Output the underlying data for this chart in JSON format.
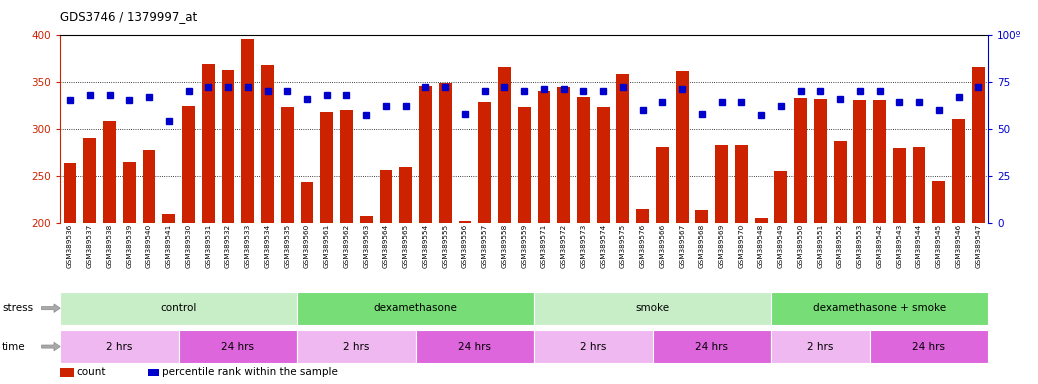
{
  "title": "GDS3746 / 1379997_at",
  "bar_values": [
    263,
    290,
    308,
    265,
    277,
    209,
    324,
    369,
    362,
    395,
    368,
    323,
    243,
    318,
    320,
    207,
    256,
    259,
    345,
    348,
    202,
    328,
    366,
    323,
    340,
    344,
    334,
    323,
    358,
    215,
    280,
    361,
    213,
    283,
    283,
    205,
    255,
    333,
    332,
    287,
    330,
    330,
    279,
    280,
    244,
    310,
    365
  ],
  "pct_values": [
    65,
    68,
    68,
    65,
    67,
    54,
    70,
    72,
    72,
    72,
    70,
    70,
    66,
    68,
    68,
    57,
    62,
    62,
    72,
    72,
    58,
    70,
    72,
    70,
    71,
    71,
    70,
    70,
    72,
    60,
    64,
    71,
    58,
    64,
    64,
    57,
    62,
    70,
    70,
    66,
    70,
    70,
    64,
    64,
    60,
    67,
    72
  ],
  "sample_labels": [
    "GSM389536",
    "GSM389537",
    "GSM389538",
    "GSM389539",
    "GSM389540",
    "GSM389541",
    "GSM389530",
    "GSM389531",
    "GSM389532",
    "GSM389533",
    "GSM389534",
    "GSM389535",
    "GSM389560",
    "GSM389561",
    "GSM389562",
    "GSM389563",
    "GSM389564",
    "GSM389565",
    "GSM389554",
    "GSM389555",
    "GSM389556",
    "GSM389557",
    "GSM389558",
    "GSM389559",
    "GSM389571",
    "GSM389572",
    "GSM389573",
    "GSM389574",
    "GSM389575",
    "GSM389576",
    "GSM389566",
    "GSM389567",
    "GSM389568",
    "GSM389569",
    "GSM389570",
    "GSM389548",
    "GSM389549",
    "GSM389550",
    "GSM389551",
    "GSM389552",
    "GSM389553",
    "GSM389542",
    "GSM389543",
    "GSM389544",
    "GSM389545",
    "GSM389546",
    "GSM389547"
  ],
  "bar_color": "#cc2200",
  "pct_color": "#0000cc",
  "ymin": 200,
  "ymax": 400,
  "yticks": [
    200,
    250,
    300,
    350,
    400
  ],
  "y2ticks": [
    0,
    25,
    50,
    75,
    100
  ],
  "stress_groups": [
    {
      "label": "control",
      "start": 0,
      "end": 11,
      "color": "#c8eec8"
    },
    {
      "label": "dexamethasone",
      "start": 12,
      "end": 23,
      "color": "#77dd77"
    },
    {
      "label": "smoke",
      "start": 24,
      "end": 35,
      "color": "#c8eec8"
    },
    {
      "label": "dexamethasone + smoke",
      "start": 36,
      "end": 46,
      "color": "#77dd77"
    }
  ],
  "time_groups": [
    {
      "label": "2 hrs",
      "start": 0,
      "end": 5,
      "color": "#f0b8f0"
    },
    {
      "label": "24 hrs",
      "start": 6,
      "end": 11,
      "color": "#dd66dd"
    },
    {
      "label": "2 hrs",
      "start": 12,
      "end": 17,
      "color": "#f0b8f0"
    },
    {
      "label": "24 hrs",
      "start": 18,
      "end": 23,
      "color": "#dd66dd"
    },
    {
      "label": "2 hrs",
      "start": 24,
      "end": 29,
      "color": "#f0b8f0"
    },
    {
      "label": "24 hrs",
      "start": 30,
      "end": 35,
      "color": "#dd66dd"
    },
    {
      "label": "2 hrs",
      "start": 36,
      "end": 40,
      "color": "#f0b8f0"
    },
    {
      "label": "24 hrs",
      "start": 41,
      "end": 46,
      "color": "#dd66dd"
    }
  ],
  "bg_color": "#ffffff",
  "axis_color_left": "#cc2200",
  "axis_color_right": "#0000cc",
  "arrow_color": "#77aa77"
}
